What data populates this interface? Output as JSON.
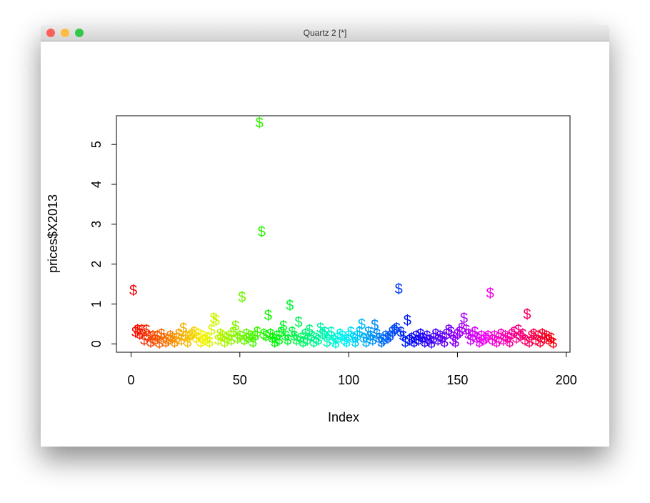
{
  "window": {
    "title": "Quartz 2 [*]"
  },
  "chart_data": {
    "type": "scatter",
    "marker": "$",
    "color_palette": "rainbow",
    "xlabel": "Index",
    "ylabel": "prices$X2013",
    "xlim": [
      -6.72,
      201.72
    ],
    "ylim": [
      -0.21,
      5.72
    ],
    "xticks": [
      0,
      50,
      100,
      150,
      200
    ],
    "yticks": [
      0,
      1,
      2,
      3,
      4,
      5
    ],
    "x": [
      1,
      2,
      3,
      4,
      5,
      6,
      7,
      8,
      9,
      10,
      11,
      12,
      13,
      14,
      15,
      16,
      17,
      18,
      19,
      20,
      21,
      22,
      23,
      24,
      25,
      26,
      27,
      28,
      29,
      30,
      31,
      32,
      33,
      34,
      35,
      36,
      37,
      38,
      39,
      40,
      41,
      42,
      43,
      44,
      45,
      46,
      47,
      48,
      49,
      50,
      51,
      52,
      53,
      54,
      55,
      56,
      57,
      58,
      59,
      60,
      61,
      62,
      63,
      64,
      65,
      66,
      67,
      68,
      69,
      70,
      71,
      72,
      73,
      74,
      75,
      76,
      77,
      78,
      79,
      80,
      81,
      82,
      83,
      84,
      85,
      86,
      87,
      88,
      89,
      90,
      91,
      92,
      93,
      94,
      95,
      96,
      97,
      98,
      99,
      100,
      101,
      102,
      103,
      104,
      105,
      106,
      107,
      108,
      109,
      110,
      111,
      112,
      113,
      114,
      115,
      116,
      117,
      118,
      119,
      120,
      121,
      122,
      123,
      124,
      125,
      126,
      127,
      128,
      129,
      130,
      131,
      132,
      133,
      134,
      135,
      136,
      137,
      138,
      139,
      140,
      141,
      142,
      143,
      144,
      145,
      146,
      147,
      148,
      149,
      150,
      151,
      152,
      153,
      154,
      155,
      156,
      157,
      158,
      159,
      160,
      161,
      162,
      163,
      164,
      165,
      166,
      167,
      168,
      169,
      170,
      171,
      172,
      173,
      174,
      175,
      176,
      177,
      178,
      179,
      180,
      181,
      182,
      183,
      184,
      185,
      186,
      187,
      188,
      189,
      190,
      191,
      192,
      193,
      194
    ],
    "values": [
      1.35,
      0.3,
      0.35,
      0.25,
      0.35,
      0.1,
      0.35,
      0.2,
      0.05,
      0.2,
      0.1,
      0.2,
      0.02,
      0.25,
      0.15,
      0.05,
      0.1,
      0.2,
      0.15,
      0.05,
      0.15,
      0.25,
      0.1,
      0.4,
      0.2,
      0.05,
      0.2,
      0.25,
      0.3,
      0.15,
      0.25,
      0.05,
      0.2,
      0.1,
      0.15,
      0.05,
      0.35,
      0.65,
      0.6,
      0.1,
      0.25,
      0.2,
      0.05,
      0.15,
      0.2,
      0.1,
      0.3,
      0.45,
      0.15,
      0.2,
      1.18,
      0.1,
      0.25,
      0.15,
      0.2,
      0.05,
      0.2,
      0.3,
      5.55,
      2.82,
      0.25,
      0.2,
      0.72,
      0.25,
      0.15,
      0.05,
      0.2,
      0.1,
      0.3,
      0.45,
      0.2,
      0.1,
      0.97,
      0.3,
      0.2,
      0.1,
      0.55,
      0.15,
      0.05,
      0.25,
      0.1,
      0.35,
      0.2,
      0.05,
      0.15,
      0.1,
      0.4,
      0.25,
      0.3,
      0.05,
      0.2,
      0.3,
      0.1,
      0.02,
      0.15,
      0.25,
      0.2,
      0.1,
      0.05,
      0.2,
      0.3,
      0.15,
      0.05,
      0.2,
      0.3,
      0.5,
      0.15,
      0.05,
      0.3,
      0.2,
      0.1,
      0.48,
      0.25,
      0.15,
      0.05,
      0.1,
      0.2,
      0.15,
      0.2,
      0.3,
      0.35,
      0.4,
      1.38,
      0.3,
      0.2,
      0.05,
      0.6,
      0.1,
      0.15,
      0.05,
      0.2,
      0.1,
      0.25,
      0.15,
      0.05,
      0.2,
      0.1,
      0.02,
      0.15,
      0.25,
      0.1,
      0.2,
      0.15,
      0.05,
      0.25,
      0.35,
      0.3,
      0.1,
      0.05,
      0.25,
      0.3,
      0.4,
      0.65,
      0.35,
      0.25,
      0.1,
      0.2,
      0.3,
      0.15,
      0.05,
      0.2,
      0.1,
      0.15,
      0.2,
      1.28,
      0.1,
      0.2,
      0.05,
      0.15,
      0.25,
      0.1,
      0.2,
      0.15,
      0.05,
      0.25,
      0.3,
      0.15,
      0.35,
      0.2,
      0.25,
      0.1,
      0.75,
      0.05,
      0.2,
      0.25,
      0.1,
      0.2,
      0.05,
      0.25,
      0.15,
      0.2,
      0.1,
      0.15,
      0.02
    ]
  }
}
